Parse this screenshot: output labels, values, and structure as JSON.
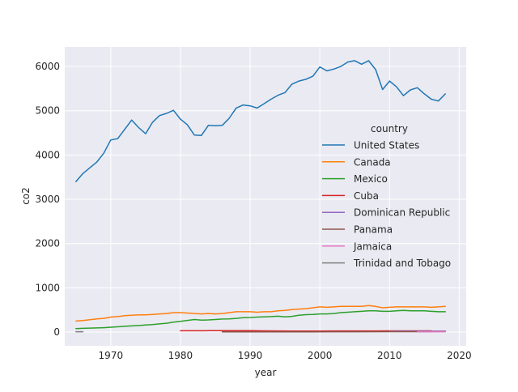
{
  "chart_data": {
    "type": "line",
    "xlabel": "year",
    "ylabel": "co2",
    "xlim": [
      1963.4,
      2021.0
    ],
    "ylim": [
      -310,
      6440
    ],
    "x_ticks": [
      1970,
      1980,
      1990,
      2000,
      2010,
      2020
    ],
    "y_ticks": [
      0,
      1000,
      2000,
      3000,
      4000,
      5000,
      6000
    ],
    "grid": true,
    "legend": {
      "title": "country",
      "placement": "center-right"
    },
    "series": [
      {
        "name": "United States",
        "color": "#1f77b4",
        "x": [
          1965,
          1966,
          1967,
          1968,
          1969,
          1970,
          1971,
          1972,
          1973,
          1974,
          1975,
          1976,
          1977,
          1978,
          1979,
          1980,
          1981,
          1982,
          1983,
          1984,
          1985,
          1986,
          1987,
          1988,
          1989,
          1990,
          1991,
          1992,
          1993,
          1994,
          1995,
          1996,
          1997,
          1998,
          1999,
          2000,
          2001,
          2002,
          2003,
          2004,
          2005,
          2006,
          2007,
          2008,
          2009,
          2010,
          2011,
          2012,
          2013,
          2014,
          2015,
          2016,
          2017,
          2018
        ],
        "y": [
          3400,
          3580,
          3710,
          3840,
          4040,
          4340,
          4370,
          4580,
          4790,
          4620,
          4480,
          4740,
          4890,
          4940,
          5010,
          4810,
          4680,
          4450,
          4440,
          4670,
          4660,
          4670,
          4830,
          5060,
          5130,
          5110,
          5060,
          5160,
          5260,
          5350,
          5410,
          5600,
          5670,
          5710,
          5780,
          5990,
          5900,
          5940,
          6000,
          6100,
          6130,
          6050,
          6130,
          5930,
          5480,
          5670,
          5540,
          5340,
          5470,
          5520,
          5380,
          5260,
          5220,
          5380
        ]
      },
      {
        "name": "Canada",
        "color": "#ff7f0e",
        "x": [
          1965,
          1966,
          1967,
          1968,
          1969,
          1970,
          1971,
          1972,
          1973,
          1974,
          1975,
          1976,
          1977,
          1978,
          1979,
          1980,
          1981,
          1982,
          1983,
          1984,
          1985,
          1986,
          1987,
          1988,
          1989,
          1990,
          1991,
          1992,
          1993,
          1994,
          1995,
          1996,
          1997,
          1998,
          1999,
          2000,
          2001,
          2002,
          2003,
          2004,
          2005,
          2006,
          2007,
          2008,
          2009,
          2010,
          2011,
          2012,
          2013,
          2014,
          2015,
          2016,
          2017,
          2018
        ],
        "y": [
          250,
          260,
          280,
          300,
          310,
          340,
          350,
          370,
          380,
          390,
          390,
          400,
          410,
          420,
          440,
          440,
          430,
          420,
          410,
          420,
          410,
          420,
          440,
          460,
          460,
          460,
          450,
          460,
          460,
          480,
          490,
          510,
          520,
          530,
          550,
          570,
          560,
          570,
          580,
          580,
          580,
          580,
          600,
          580,
          550,
          560,
          570,
          570,
          570,
          570,
          570,
          560,
          570,
          580
        ]
      },
      {
        "name": "Mexico",
        "color": "#2ca02c",
        "x": [
          1965,
          1966,
          1967,
          1968,
          1969,
          1970,
          1971,
          1972,
          1973,
          1974,
          1975,
          1976,
          1977,
          1978,
          1979,
          1980,
          1981,
          1982,
          1983,
          1984,
          1985,
          1986,
          1987,
          1988,
          1989,
          1990,
          1991,
          1992,
          1993,
          1994,
          1995,
          1996,
          1997,
          1998,
          1999,
          2000,
          2001,
          2002,
          2003,
          2004,
          2005,
          2006,
          2007,
          2008,
          2009,
          2010,
          2011,
          2012,
          2013,
          2014,
          2015,
          2016,
          2017,
          2018
        ],
        "y": [
          80,
          85,
          90,
          95,
          100,
          110,
          120,
          130,
          140,
          150,
          160,
          170,
          185,
          200,
          225,
          245,
          265,
          285,
          270,
          275,
          285,
          295,
          300,
          310,
          325,
          330,
          340,
          345,
          350,
          360,
          345,
          355,
          380,
          395,
          400,
          410,
          410,
          420,
          440,
          450,
          460,
          470,
          480,
          480,
          470,
          470,
          480,
          490,
          480,
          480,
          480,
          470,
          460,
          460
        ]
      },
      {
        "name": "Cuba",
        "color": "#d62728",
        "x": [
          1980,
          1982,
          1984,
          1986,
          1988,
          1990,
          1992,
          1994,
          1996,
          1998,
          2000,
          2002,
          2004,
          2006,
          2008,
          2010,
          2012,
          2014,
          2016
        ],
        "y": [
          30,
          30,
          32,
          34,
          34,
          32,
          28,
          26,
          25,
          25,
          25,
          26,
          26,
          27,
          27,
          28,
          28,
          28,
          28
        ]
      },
      {
        "name": "Dominican Republic",
        "color": "#9467bd",
        "x": [
          2010,
          2012,
          2014,
          2016,
          2018
        ],
        "y": [
          20,
          21,
          22,
          22,
          23
        ]
      },
      {
        "name": "Panama",
        "color": "#8c564b",
        "x": [
          1986,
          1990,
          1994,
          1998,
          2002,
          2006,
          2010,
          2014,
          2018
        ],
        "y": [
          5,
          5,
          6,
          7,
          8,
          9,
          10,
          11,
          12
        ]
      },
      {
        "name": "Jamaica",
        "color": "#e377c2",
        "x": [
          2014,
          2016,
          2018
        ],
        "y": [
          9,
          9,
          10
        ]
      },
      {
        "name": "Trinidad and Tobago",
        "color": "#7f7f7f",
        "x": [
          1965,
          1966
        ],
        "y": [
          8,
          8
        ]
      }
    ]
  }
}
